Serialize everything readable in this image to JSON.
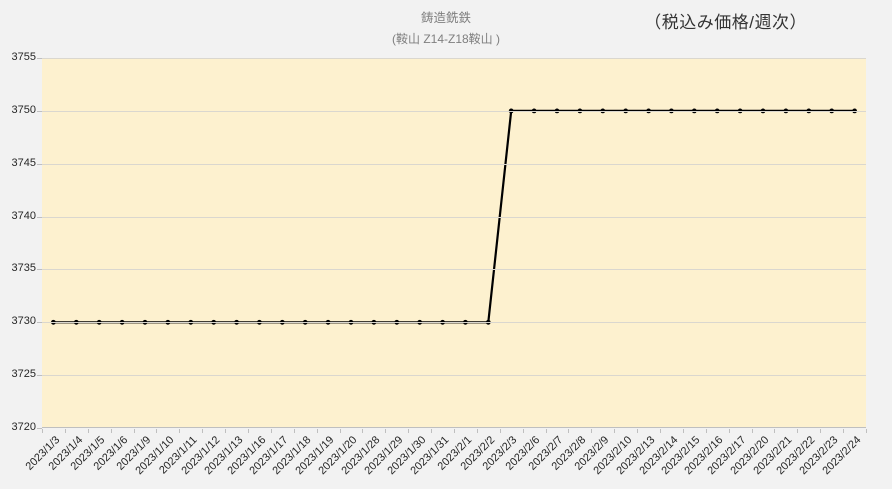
{
  "header": {
    "title": "鋳造銑鉄",
    "subtitle": "(鞍山 Z14-Z18鞍山 )",
    "right_label": "（税込み価格/週次）"
  },
  "chart_data": {
    "type": "line",
    "title": "鋳造銑鉄",
    "subtitle": "(鞍山 Z14-Z18鞍山 )",
    "corner_label": "（税込み価格/週次）",
    "categories": [
      "2023/1/3",
      "2023/1/4",
      "2023/1/5",
      "2023/1/6",
      "2023/1/9",
      "2023/1/10",
      "2023/1/11",
      "2023/1/12",
      "2023/1/13",
      "2023/1/16",
      "2023/1/17",
      "2023/1/18",
      "2023/1/19",
      "2023/1/20",
      "2023/1/28",
      "2023/1/29",
      "2023/1/30",
      "2023/1/31",
      "2023/2/1",
      "2023/2/2",
      "2023/2/3",
      "2023/2/6",
      "2023/2/7",
      "2023/2/8",
      "2023/2/9",
      "2023/2/10",
      "2023/2/13",
      "2023/2/14",
      "2023/2/15",
      "2023/2/16",
      "2023/2/17",
      "2023/2/20",
      "2023/2/21",
      "2023/2/22",
      "2023/2/23",
      "2023/2/24"
    ],
    "series": [
      {
        "name": "鋳造銑鉄 (鞍山 Z14-Z18鞍山)",
        "values": [
          3730,
          3730,
          3730,
          3730,
          3730,
          3730,
          3730,
          3730,
          3730,
          3730,
          3730,
          3730,
          3730,
          3730,
          3730,
          3730,
          3730,
          3730,
          3730,
          3730,
          3750,
          3750,
          3750,
          3750,
          3750,
          3750,
          3750,
          3750,
          3750,
          3750,
          3750,
          3750,
          3750,
          3750,
          3750,
          3750
        ]
      }
    ],
    "xlabel": "",
    "ylabel": "",
    "ylim": [
      3720,
      3755
    ],
    "yticks": [
      3720,
      3725,
      3730,
      3735,
      3740,
      3745,
      3750,
      3755
    ],
    "grid": true,
    "legend": "none",
    "marker": "circle",
    "line_color": "#000000",
    "plot_bg": "#fdf1cf",
    "grid_color": "#dad7cf",
    "axis_color": "#bfbfbf",
    "page_bg": "#f2f2f2",
    "title_color": "#7f7f7f",
    "label_color": "#262626"
  }
}
